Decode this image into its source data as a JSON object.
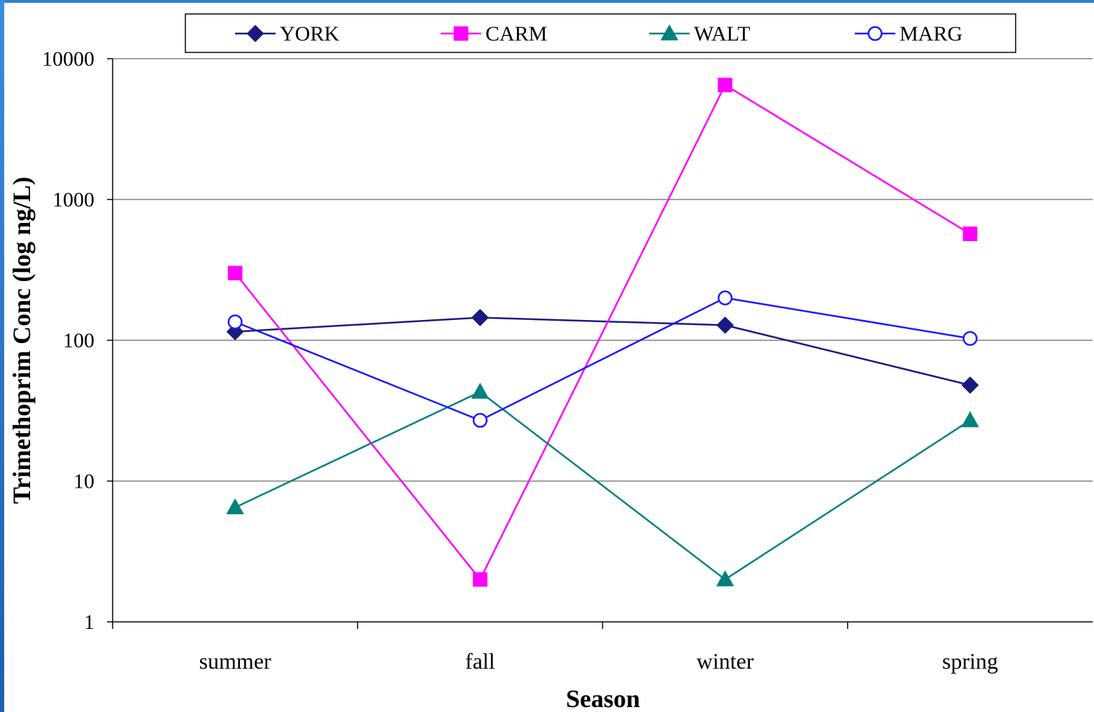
{
  "chart_data": {
    "type": "line",
    "xlabel": "Season",
    "ylabel": "Trimethoprim Conc (log ng/L)",
    "yscale": "log",
    "ylim": [
      1,
      10000
    ],
    "yticks": [
      "1",
      "10",
      "100",
      "1000",
      "10000"
    ],
    "categories": [
      "summer",
      "fall",
      "winter",
      "spring"
    ],
    "grid": "horizontal major gridlines",
    "legend_position": "top",
    "series": [
      {
        "name": "YORK",
        "values": [
          115,
          145,
          128,
          48
        ],
        "color": "#1a1a80",
        "marker": "diamond",
        "fill": true
      },
      {
        "name": "CARM",
        "values": [
          300,
          2,
          6500,
          570
        ],
        "color": "#ff00ff",
        "marker": "square",
        "fill": true
      },
      {
        "name": "WALT",
        "values": [
          6.5,
          43,
          2,
          27
        ],
        "color": "#008080",
        "marker": "triangle",
        "fill": true
      },
      {
        "name": "MARG",
        "values": [
          135,
          27,
          200,
          103
        ],
        "color": "#1a1aff",
        "marker": "circle",
        "fill": false
      }
    ]
  }
}
